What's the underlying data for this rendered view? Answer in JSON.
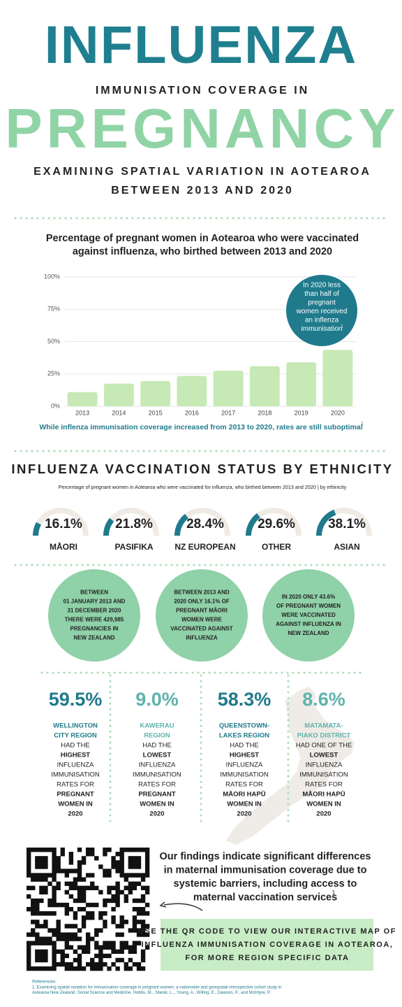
{
  "header": {
    "title": "INFLUENZA",
    "line2": "IMMUNISATION COVERAGE IN",
    "title2": "PREGNANCY",
    "subtitle": [
      "EXAMINING SPATIAL VARIATION IN AOTEAROA",
      "BETWEEN 2013 AND 2020"
    ]
  },
  "chart_data": [
    {
      "type": "bar",
      "title": [
        "Percentage of pregnant women in Aotearoa who were vaccinated",
        "against influenza, who birthed between 2013 and 2020"
      ],
      "categories": [
        "2013",
        "2014",
        "2015",
        "2016",
        "2017",
        "2018",
        "2019",
        "2020"
      ],
      "values": [
        11,
        17.5,
        19.5,
        23.5,
        27.5,
        31,
        34,
        43.6
      ],
      "color": "#c6e9b6",
      "ylim": [
        0,
        100
      ],
      "yticks": [
        {
          "value": 0,
          "label": "0%"
        },
        {
          "value": 25,
          "label": "25%"
        },
        {
          "value": 50,
          "label": "50%"
        },
        {
          "value": 75,
          "label": "75%"
        },
        {
          "value": 100,
          "label": "100%"
        }
      ],
      "grid": true,
      "annotation": {
        "lines": [
          "In 2020 less",
          "than half of",
          "pregnant",
          "women received",
          "an inflenza",
          "immunisation"
        ],
        "ref": "1"
      },
      "caption": "While inflenza immunisation coverage increased from 2013 to 2020, rates are still suboptimal",
      "caption_ref": "1"
    },
    {
      "type": "gauge",
      "title": "INFLUENZA VACCINATION STATUS BY ETHNICITY",
      "subtitle": "Percentage of pregnant women in Aotearoa who were vaccinated for influenza, who birthed between 2013 and 2020 | by ethinicity",
      "categories": [
        "MĀORI",
        "PASIFIKA",
        "NZ EUROPEAN",
        "OTHER",
        "ASIAN"
      ],
      "values": [
        16.1,
        21.8,
        28.4,
        29.6,
        38.1
      ],
      "value_labels": [
        "16.1%",
        "21.8%",
        "28.4%",
        "29.6%",
        "38.1%"
      ],
      "color": "#1f7a8c",
      "track_color": "#efeae4",
      "ylim": [
        0,
        100
      ]
    }
  ],
  "facts": [
    [
      "BETWEEN",
      "01 JANUARY 2013 AND",
      "31 DECEMBER 2020",
      "THERE WERE 429,985",
      "PREGNANCIES IN",
      "NEW ZEALAND"
    ],
    [
      "BETWEEN 2013 AND",
      "2020 ONLY 16.1% OF",
      "PREGNANT MĀORI",
      "WOMEN WERE",
      "VACCINATED AGAINST",
      "INFLUENZA"
    ],
    [
      "IN 2020 ONLY 43.6%",
      "OF PREGNANT WOMEN",
      "WERE VACCINATED",
      "AGAINST INFLUENZA IN",
      "NEW ZEALAND"
    ]
  ],
  "regions": {
    "emphasis_lines": [
      1,
      5,
      6,
      7
    ],
    "items": [
      {
        "value": "59.5%",
        "color": "#1f7a8c",
        "name": [
          "WELLINGTON",
          "CITY REGION"
        ],
        "text": [
          "HAD THE",
          "HIGHEST",
          "INFLUENZA",
          "IMMUNISATION",
          "RATES FOR",
          "PREGNANT",
          "WOMEN IN",
          "2020"
        ]
      },
      {
        "value": "9.0%",
        "color": "#5fb3ad",
        "name": [
          "KAWERAU",
          "REGION"
        ],
        "text": [
          "HAD THE",
          "LOWEST",
          "INFLUENZA",
          "IMMUNISATION",
          "RATES FOR",
          "PREGNANT",
          "WOMEN IN",
          "2020"
        ]
      },
      {
        "value": "58.3%",
        "color": "#1f7a8c",
        "name": [
          "QUEENSTOWN-",
          "LAKES REGION"
        ],
        "text": [
          "HAD THE",
          "HIGHEST",
          "INFLUENZA",
          "IMMUNISATION",
          "RATES FOR",
          "MĀORI HAPŪ",
          "WOMEN IN",
          "2020"
        ]
      },
      {
        "value": "8.6%",
        "color": "#5fb3ad",
        "name": [
          "MATAMATA-",
          "PIAKO DISTRICT"
        ],
        "text": [
          "HAD ONE OF THE",
          "LOWEST",
          "INFLUENZA",
          "IMMUNISATION",
          "RATES FOR",
          "MĀORI HAPŪ",
          "WOMEN IN",
          "2020"
        ]
      }
    ]
  },
  "findings": {
    "lines": [
      "Our findings indicate significant differences",
      "in maternal immunisation coverage due to",
      "systemic barriers, including access to",
      "maternal vaccination services"
    ],
    "ref": "1"
  },
  "qr_note": [
    "USE THE QR CODE TO VIEW OUR INTERACTIVE MAP OF",
    "INFLUENZA IMMUNISATION COVERAGE IN AOTEAROA,",
    "FOR MORE REGION SPECIFIC DATA"
  ],
  "references": {
    "title": "References:",
    "lines": [
      "1. Examining spatial variation for immunisation coverage in pregnant women: a nationwide and geospatial retrospective cohort study in",
      "Aotearoa New Zealand. Social Science and Medicine. Hobbs, M.., Marek, L.., Young, A., Willing, E., Dawson, P., and McIntyre, P."
    ]
  }
}
